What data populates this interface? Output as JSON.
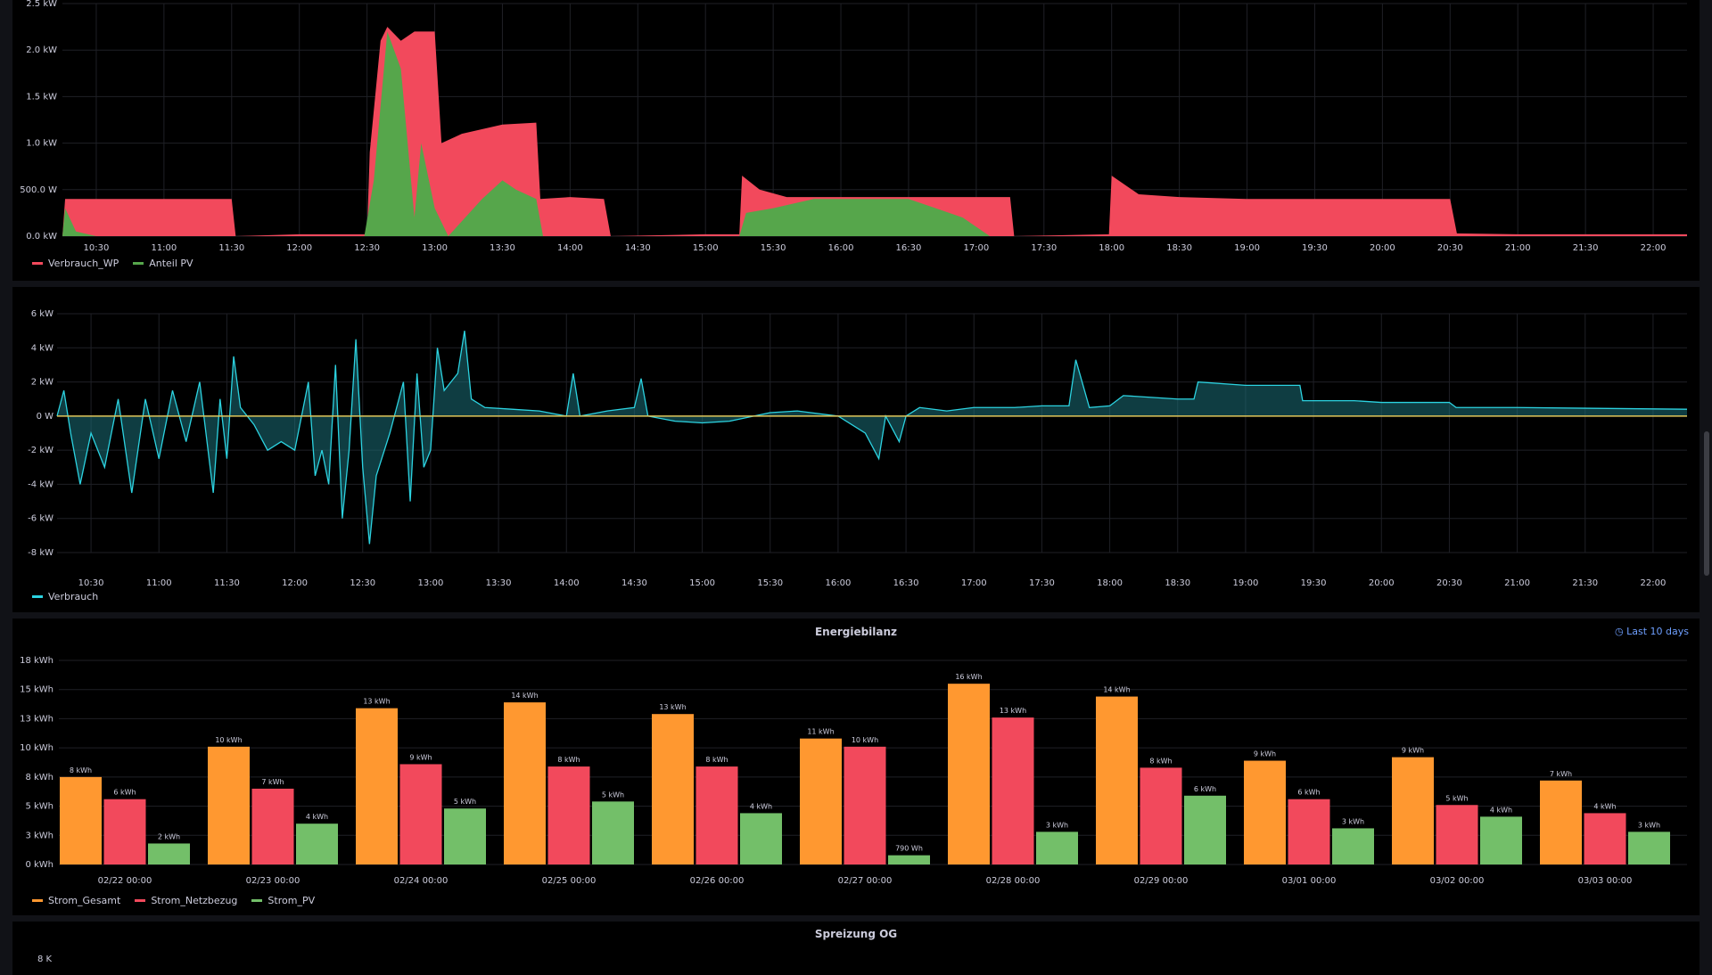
{
  "panels": [
    {
      "id": "p1",
      "title": "",
      "chart_data": {
        "type": "area",
        "yticks": [
          "0.0 kW",
          "500.0 W",
          "1.0 kW",
          "1.5 kW",
          "2.0 kW",
          "2.5 kW"
        ],
        "ylim": [
          0,
          2.5
        ],
        "xticks": [
          "10:30",
          "11:00",
          "11:30",
          "12:00",
          "12:30",
          "13:00",
          "13:30",
          "14:00",
          "14:30",
          "15:00",
          "15:30",
          "16:00",
          "16:30",
          "17:00",
          "17:30",
          "18:00",
          "18:30",
          "19:00",
          "19:30",
          "20:00",
          "20:30",
          "21:00",
          "21:30",
          "22:00"
        ],
        "xrange_hours": [
          10.25,
          22.25
        ],
        "series": [
          {
            "name": "Verbrauch_WP",
            "color": "#f2495c",
            "points": [
              [
                10.25,
                0.0
              ],
              [
                10.27,
                0.4
              ],
              [
                10.5,
                0.4
              ],
              [
                11.0,
                0.4
              ],
              [
                11.5,
                0.4
              ],
              [
                11.53,
                0.0
              ],
              [
                12.0,
                0.02
              ],
              [
                12.5,
                0.02
              ],
              [
                12.52,
                0.9
              ],
              [
                12.6,
                2.1
              ],
              [
                12.65,
                2.25
              ],
              [
                12.75,
                2.1
              ],
              [
                12.85,
                2.2
              ],
              [
                13.0,
                2.2
              ],
              [
                13.05,
                1.0
              ],
              [
                13.2,
                1.1
              ],
              [
                13.5,
                1.2
              ],
              [
                13.75,
                1.22
              ],
              [
                13.78,
                0.4
              ],
              [
                14.0,
                0.42
              ],
              [
                14.25,
                0.4
              ],
              [
                14.3,
                0.0
              ],
              [
                15.0,
                0.02
              ],
              [
                15.25,
                0.02
              ],
              [
                15.27,
                0.65
              ],
              [
                15.4,
                0.5
              ],
              [
                15.6,
                0.42
              ],
              [
                16.0,
                0.42
              ],
              [
                16.5,
                0.42
              ],
              [
                17.0,
                0.42
              ],
              [
                17.25,
                0.42
              ],
              [
                17.28,
                0.0
              ],
              [
                17.98,
                0.02
              ],
              [
                18.0,
                0.65
              ],
              [
                18.2,
                0.45
              ],
              [
                18.5,
                0.42
              ],
              [
                19.0,
                0.4
              ],
              [
                19.5,
                0.4
              ],
              [
                20.0,
                0.4
              ],
              [
                20.5,
                0.4
              ],
              [
                20.55,
                0.03
              ],
              [
                21.0,
                0.02
              ],
              [
                22.25,
                0.02
              ]
            ]
          },
          {
            "name": "Anteil PV",
            "color": "#56a64b",
            "points": [
              [
                10.25,
                0.0
              ],
              [
                10.27,
                0.3
              ],
              [
                10.35,
                0.05
              ],
              [
                10.5,
                0.0
              ],
              [
                12.48,
                0.0
              ],
              [
                12.55,
                0.6
              ],
              [
                12.65,
                2.2
              ],
              [
                12.75,
                1.8
              ],
              [
                12.85,
                0.2
              ],
              [
                12.9,
                1.0
              ],
              [
                13.0,
                0.3
              ],
              [
                13.1,
                0.0
              ],
              [
                13.35,
                0.4
              ],
              [
                13.5,
                0.6
              ],
              [
                13.6,
                0.5
              ],
              [
                13.75,
                0.4
              ],
              [
                13.8,
                0.0
              ],
              [
                14.2,
                0.0
              ],
              [
                15.25,
                0.0
              ],
              [
                15.3,
                0.25
              ],
              [
                15.5,
                0.3
              ],
              [
                15.8,
                0.4
              ],
              [
                16.2,
                0.4
              ],
              [
                16.5,
                0.4
              ],
              [
                16.7,
                0.3
              ],
              [
                16.9,
                0.2
              ],
              [
                17.05,
                0.05
              ],
              [
                17.1,
                0.0
              ],
              [
                22.25,
                0.0
              ]
            ]
          }
        ]
      },
      "legend": [
        {
          "label": "Verbrauch_WP",
          "color": "#f2495c"
        },
        {
          "label": "Anteil PV",
          "color": "#56a64b"
        }
      ]
    },
    {
      "id": "p2",
      "title": "",
      "chart_data": {
        "type": "line",
        "yticks": [
          "6 kW",
          "4 kW",
          "2 kW",
          "0 W",
          "-2 kW",
          "-4 kW",
          "-6 kW",
          "-8 kW"
        ],
        "ylim": [
          -8,
          6
        ],
        "xticks": [
          "10:30",
          "11:00",
          "11:30",
          "12:00",
          "12:30",
          "13:00",
          "13:30",
          "14:00",
          "14:30",
          "15:00",
          "15:30",
          "16:00",
          "16:30",
          "17:00",
          "17:30",
          "18:00",
          "18:30",
          "19:00",
          "19:30",
          "20:00",
          "20:30",
          "21:00",
          "21:30",
          "22:00"
        ],
        "xrange_hours": [
          10.25,
          22.25
        ],
        "series": [
          {
            "name": "Verbrauch",
            "color": "#2cd3e1",
            "points": [
              [
                10.25,
                0.0
              ],
              [
                10.3,
                1.5
              ],
              [
                10.35,
                -1.0
              ],
              [
                10.42,
                -4.0
              ],
              [
                10.5,
                -1.0
              ],
              [
                10.6,
                -3.0
              ],
              [
                10.7,
                1.0
              ],
              [
                10.8,
                -4.5
              ],
              [
                10.9,
                1.0
              ],
              [
                11.0,
                -2.5
              ],
              [
                11.1,
                1.5
              ],
              [
                11.2,
                -1.5
              ],
              [
                11.3,
                2.0
              ],
              [
                11.4,
                -4.5
              ],
              [
                11.45,
                1.0
              ],
              [
                11.5,
                -2.5
              ],
              [
                11.55,
                3.5
              ],
              [
                11.6,
                0.5
              ],
              [
                11.7,
                -0.5
              ],
              [
                11.8,
                -2.0
              ],
              [
                11.9,
                -1.5
              ],
              [
                12.0,
                -2.0
              ],
              [
                12.1,
                2.0
              ],
              [
                12.15,
                -3.5
              ],
              [
                12.2,
                -2.0
              ],
              [
                12.25,
                -4.0
              ],
              [
                12.3,
                3.0
              ],
              [
                12.35,
                -6.0
              ],
              [
                12.4,
                -2.0
              ],
              [
                12.45,
                4.5
              ],
              [
                12.5,
                -3.0
              ],
              [
                12.55,
                -7.5
              ],
              [
                12.6,
                -3.5
              ],
              [
                12.7,
                -1.0
              ],
              [
                12.8,
                2.0
              ],
              [
                12.85,
                -5.0
              ],
              [
                12.9,
                2.5
              ],
              [
                12.95,
                -3.0
              ],
              [
                13.0,
                -2.0
              ],
              [
                13.05,
                4.0
              ],
              [
                13.1,
                1.5
              ],
              [
                13.2,
                2.5
              ],
              [
                13.25,
                5.0
              ],
              [
                13.3,
                1.0
              ],
              [
                13.4,
                0.5
              ],
              [
                13.6,
                0.4
              ],
              [
                13.8,
                0.3
              ],
              [
                14.0,
                0.0
              ],
              [
                14.05,
                2.5
              ],
              [
                14.1,
                0.0
              ],
              [
                14.3,
                0.3
              ],
              [
                14.5,
                0.5
              ],
              [
                14.55,
                2.2
              ],
              [
                14.6,
                0.0
              ],
              [
                14.8,
                -0.3
              ],
              [
                15.0,
                -0.4
              ],
              [
                15.2,
                -0.3
              ],
              [
                15.5,
                0.2
              ],
              [
                15.7,
                0.3
              ],
              [
                16.0,
                0.0
              ],
              [
                16.2,
                -1.0
              ],
              [
                16.3,
                -2.5
              ],
              [
                16.35,
                0.0
              ],
              [
                16.45,
                -1.5
              ],
              [
                16.5,
                0.0
              ],
              [
                16.6,
                0.5
              ],
              [
                16.8,
                0.3
              ],
              [
                17.0,
                0.5
              ],
              [
                17.3,
                0.5
              ],
              [
                17.5,
                0.6
              ],
              [
                17.7,
                0.6
              ],
              [
                17.75,
                3.3
              ],
              [
                17.85,
                0.5
              ],
              [
                18.0,
                0.6
              ],
              [
                18.1,
                1.2
              ],
              [
                18.5,
                1.0
              ],
              [
                18.62,
                1.0
              ],
              [
                18.65,
                2.0
              ],
              [
                19.0,
                1.8
              ],
              [
                19.2,
                1.8
              ],
              [
                19.4,
                1.8
              ],
              [
                19.42,
                0.9
              ],
              [
                19.8,
                0.9
              ],
              [
                20.0,
                0.8
              ],
              [
                20.5,
                0.8
              ],
              [
                20.55,
                0.5
              ],
              [
                21.0,
                0.5
              ],
              [
                22.25,
                0.4
              ]
            ]
          }
        ]
      },
      "legend": [
        {
          "label": "Verbrauch",
          "color": "#2cd3e1"
        }
      ]
    },
    {
      "id": "p3",
      "title": "Energiebilanz",
      "time_range": "Last 10 days",
      "chart_data": {
        "type": "bar",
        "yticks": [
          "0 kWh",
          "3 kWh",
          "5 kWh",
          "8 kWh",
          "10 kWh",
          "13 kWh",
          "15 kWh",
          "18 kWh"
        ],
        "ylim": [
          0,
          17.5
        ],
        "categories": [
          "02/22 00:00",
          "02/23 00:00",
          "02/24 00:00",
          "02/25 00:00",
          "02/26 00:00",
          "02/27 00:00",
          "02/28 00:00",
          "02/29 00:00",
          "03/01 00:00",
          "03/02 00:00",
          "03/03 00:00"
        ],
        "series": [
          {
            "name": "Strom_Gesamt",
            "color": "#ff9830",
            "values": [
              7.5,
              10.1,
              13.4,
              13.9,
              12.9,
              10.8,
              15.5,
              14.4,
              8.9,
              9.2,
              7.2
            ],
            "labels": [
              "8 kWh",
              "10 kWh",
              "13 kWh",
              "14 kWh",
              "13 kWh",
              "11 kWh",
              "16 kWh",
              "14 kWh",
              "9 kWh",
              "9 kWh",
              "7 kWh"
            ]
          },
          {
            "name": "Strom_Netzbezug",
            "color": "#f2495c",
            "values": [
              5.6,
              6.5,
              8.6,
              8.4,
              8.4,
              10.1,
              12.6,
              8.3,
              5.6,
              5.1,
              4.4
            ],
            "labels": [
              "6 kWh",
              "7 kWh",
              "9 kWh",
              "8 kWh",
              "8 kWh",
              "10 kWh",
              "13 kWh",
              "8 kWh",
              "6 kWh",
              "5 kWh",
              "4 kWh"
            ]
          },
          {
            "name": "Strom_PV",
            "color": "#73bf69",
            "values": [
              1.8,
              3.5,
              4.8,
              5.4,
              4.4,
              0.79,
              2.8,
              5.9,
              3.1,
              4.1,
              2.8
            ],
            "labels": [
              "2 kWh",
              "4 kWh",
              "5 kWh",
              "5 kWh",
              "4 kWh",
              "790 Wh",
              "3 kWh",
              "6 kWh",
              "3 kWh",
              "4 kWh",
              "3 kWh"
            ]
          }
        ]
      },
      "legend": [
        {
          "label": "Strom_Gesamt",
          "color": "#ff9830"
        },
        {
          "label": "Strom_Netzbezug",
          "color": "#f2495c"
        },
        {
          "label": "Strom_PV",
          "color": "#73bf69"
        }
      ]
    },
    {
      "id": "p4",
      "title": "Spreizung OG",
      "first_ytick": "8 K"
    }
  ]
}
